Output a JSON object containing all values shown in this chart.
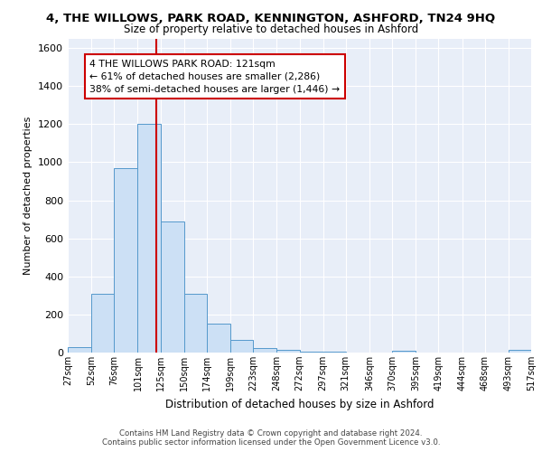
{
  "title": "4, THE WILLOWS, PARK ROAD, KENNINGTON, ASHFORD, TN24 9HQ",
  "subtitle": "Size of property relative to detached houses in Ashford",
  "xlabel": "Distribution of detached houses by size in Ashford",
  "ylabel": "Number of detached properties",
  "bar_color": "#cce0f5",
  "bar_edge_color": "#5599cc",
  "vline_x": 121,
  "vline_color": "#cc0000",
  "annotation_line1": "4 THE WILLOWS PARK ROAD: 121sqm",
  "annotation_line2": "← 61% of detached houses are smaller (2,286)",
  "annotation_line3": "38% of semi-detached houses are larger (1,446) →",
  "annotation_box_color": "white",
  "annotation_box_edge_color": "#cc0000",
  "bin_edges": [
    27,
    52,
    76,
    101,
    125,
    150,
    174,
    199,
    223,
    248,
    272,
    297,
    321,
    346,
    370,
    395,
    419,
    444,
    468,
    493,
    517
  ],
  "bar_heights": [
    30,
    310,
    970,
    1200,
    690,
    310,
    150,
    65,
    25,
    15,
    5,
    5,
    0,
    0,
    10,
    0,
    0,
    0,
    0,
    15
  ],
  "ylim": [
    0,
    1650
  ],
  "yticks": [
    0,
    200,
    400,
    600,
    800,
    1000,
    1200,
    1400,
    1600
  ],
  "background_color": "#e8eef8",
  "grid_color": "white",
  "footer_text": "Contains HM Land Registry data © Crown copyright and database right 2024.\nContains public sector information licensed under the Open Government Licence v3.0.",
  "tick_labels": [
    "27sqm",
    "52sqm",
    "76sqm",
    "101sqm",
    "125sqm",
    "150sqm",
    "174sqm",
    "199sqm",
    "223sqm",
    "248sqm",
    "272sqm",
    "297sqm",
    "321sqm",
    "346sqm",
    "370sqm",
    "395sqm",
    "419sqm",
    "444sqm",
    "468sqm",
    "493sqm",
    "517sqm"
  ]
}
